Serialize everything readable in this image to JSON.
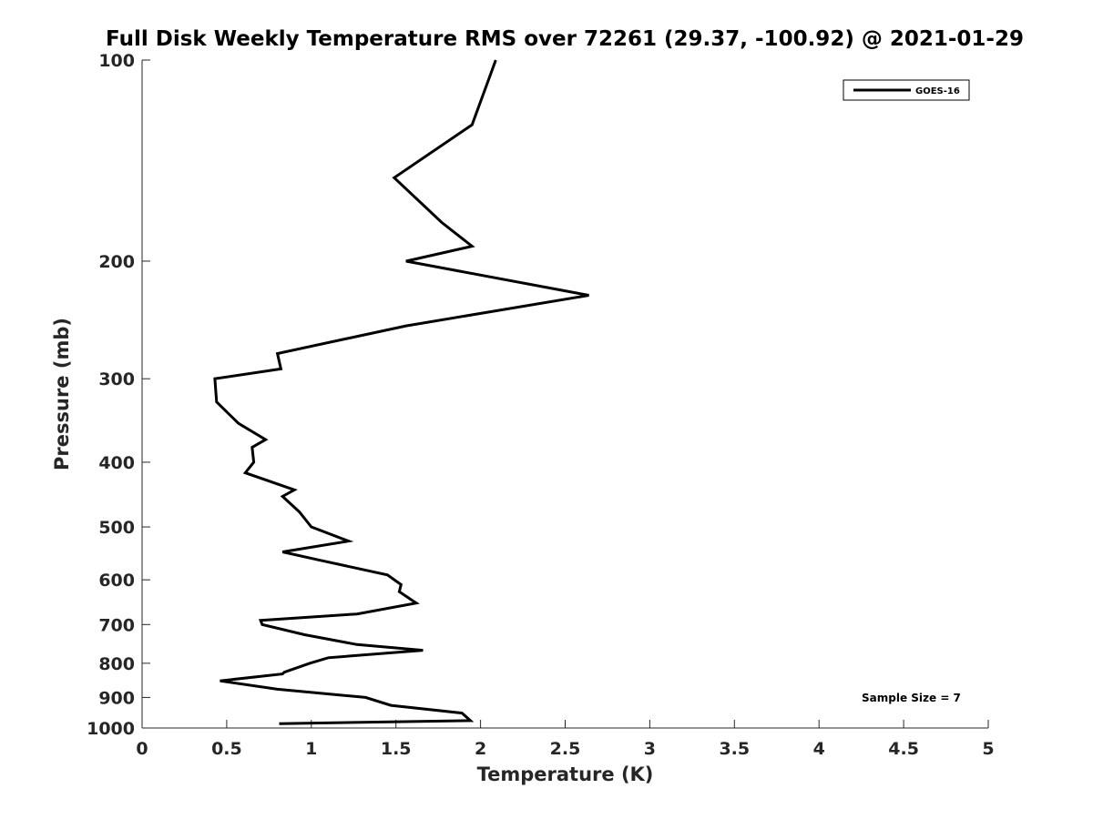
{
  "chart_data": {
    "type": "line",
    "title": "Full Disk Weekly Temperature RMS over 72261 (29.37, -100.92) @ 2021-01-29",
    "xlabel": "Temperature (K)",
    "ylabel": "Pressure (mb)",
    "xlim": [
      0,
      5
    ],
    "ylim": [
      100,
      1000
    ],
    "y_scale": "log",
    "y_reversed": true,
    "x_ticks": [
      "0",
      "0.5",
      "1",
      "1.5",
      "2",
      "2.5",
      "3",
      "3.5",
      "4",
      "4.5",
      "5"
    ],
    "y_ticks": [
      "100",
      "200",
      "300",
      "400",
      "500",
      "600",
      "700",
      "800",
      "900",
      "1000"
    ],
    "grid": false,
    "legend_position": "top-right",
    "annotation": "Sample Size = 7",
    "series": [
      {
        "name": "GOES-16",
        "color": "#000000",
        "points": [
          [
            2.09,
            100
          ],
          [
            1.95,
            125
          ],
          [
            1.49,
            150
          ],
          [
            1.77,
            175
          ],
          [
            1.95,
            190
          ],
          [
            1.56,
            200
          ],
          [
            2.64,
            225
          ],
          [
            1.56,
            250
          ],
          [
            0.8,
            275
          ],
          [
            0.82,
            290
          ],
          [
            0.43,
            300
          ],
          [
            0.44,
            325
          ],
          [
            0.57,
            350
          ],
          [
            0.73,
            370
          ],
          [
            0.65,
            380
          ],
          [
            0.66,
            400
          ],
          [
            0.61,
            415
          ],
          [
            0.9,
            440
          ],
          [
            0.83,
            450
          ],
          [
            0.93,
            475
          ],
          [
            1.0,
            500
          ],
          [
            1.22,
            525
          ],
          [
            0.83,
            545
          ],
          [
            1.04,
            560
          ],
          [
            1.45,
            590
          ],
          [
            1.53,
            610
          ],
          [
            1.52,
            625
          ],
          [
            1.62,
            650
          ],
          [
            1.27,
            675
          ],
          [
            0.7,
            690
          ],
          [
            0.71,
            700
          ],
          [
            0.96,
            725
          ],
          [
            1.27,
            750
          ],
          [
            1.66,
            765
          ],
          [
            1.1,
            785
          ],
          [
            0.99,
            800
          ],
          [
            0.84,
            825
          ],
          [
            0.83,
            830
          ],
          [
            0.46,
            850
          ],
          [
            0.8,
            875
          ],
          [
            1.32,
            900
          ],
          [
            1.47,
            925
          ],
          [
            1.89,
            950
          ],
          [
            1.94,
            975
          ],
          [
            0.81,
            985
          ]
        ]
      }
    ]
  }
}
